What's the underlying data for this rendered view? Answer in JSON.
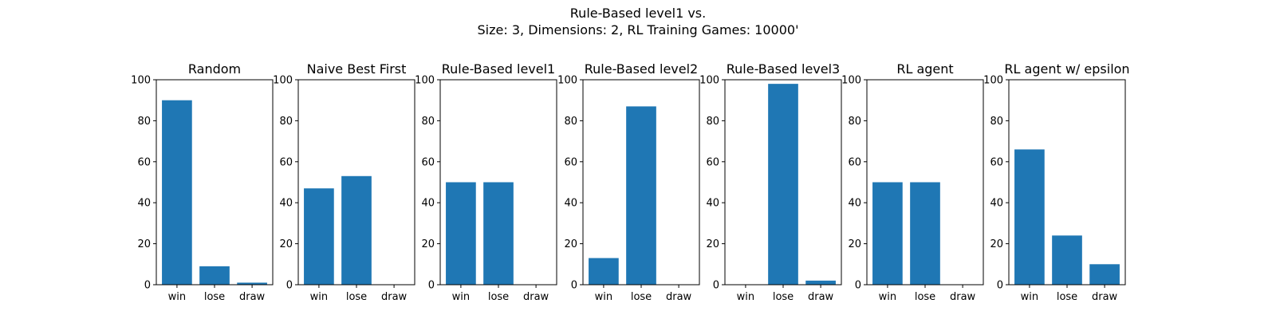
{
  "figure": {
    "title_line1": "Rule-Based level1 vs.",
    "title_line2": "Size: 3, Dimensions: 2, RL Training Games: 10000'",
    "bar_color": "#1f77b4"
  },
  "chart_data": [
    {
      "type": "bar",
      "title": "Random",
      "categories": [
        "win",
        "lose",
        "draw"
      ],
      "values": [
        90,
        9,
        1
      ],
      "ylim": [
        0,
        100
      ],
      "yticks": [
        0,
        20,
        40,
        60,
        80,
        100
      ]
    },
    {
      "type": "bar",
      "title": "Naive Best First",
      "categories": [
        "win",
        "lose",
        "draw"
      ],
      "values": [
        47,
        53,
        0
      ],
      "ylim": [
        0,
        100
      ],
      "yticks": [
        0,
        20,
        40,
        60,
        80,
        100
      ]
    },
    {
      "type": "bar",
      "title": "Rule-Based level1",
      "categories": [
        "win",
        "lose",
        "draw"
      ],
      "values": [
        50,
        50,
        0
      ],
      "ylim": [
        0,
        100
      ],
      "yticks": [
        0,
        20,
        40,
        60,
        80,
        100
      ]
    },
    {
      "type": "bar",
      "title": "Rule-Based level2",
      "categories": [
        "win",
        "lose",
        "draw"
      ],
      "values": [
        13,
        87,
        0
      ],
      "ylim": [
        0,
        100
      ],
      "yticks": [
        0,
        20,
        40,
        60,
        80,
        100
      ]
    },
    {
      "type": "bar",
      "title": "Rule-Based level3",
      "categories": [
        "win",
        "lose",
        "draw"
      ],
      "values": [
        0,
        98,
        2
      ],
      "ylim": [
        0,
        100
      ],
      "yticks": [
        0,
        20,
        40,
        60,
        80,
        100
      ]
    },
    {
      "type": "bar",
      "title": "RL agent",
      "categories": [
        "win",
        "lose",
        "draw"
      ],
      "values": [
        50,
        50,
        0
      ],
      "ylim": [
        0,
        100
      ],
      "yticks": [
        0,
        20,
        40,
        60,
        80,
        100
      ]
    },
    {
      "type": "bar",
      "title": "RL agent w/ epsilon",
      "categories": [
        "win",
        "lose",
        "draw"
      ],
      "values": [
        66,
        24,
        10
      ],
      "ylim": [
        0,
        100
      ],
      "yticks": [
        0,
        20,
        40,
        60,
        80,
        100
      ]
    }
  ]
}
